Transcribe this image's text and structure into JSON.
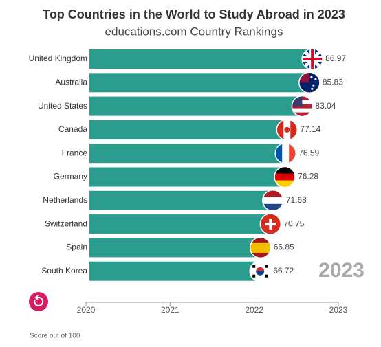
{
  "chart_data": {
    "type": "bar",
    "orientation": "horizontal",
    "title": "Top Countries in the World to Study Abroad in 2023",
    "subtitle": "educations.com Country Rankings",
    "categories": [
      "United Kingdom",
      "Australia",
      "United States",
      "Canada",
      "France",
      "Germany",
      "Netherlands",
      "Switzerland",
      "Spain",
      "South Korea"
    ],
    "values": [
      86.97,
      85.83,
      83.04,
      77.14,
      76.59,
      76.28,
      71.68,
      70.75,
      66.85,
      66.72
    ],
    "color": "#2a9d8f",
    "xlim": [
      0,
      100
    ],
    "year": 2023,
    "timeline": {
      "ticks": [
        2020,
        2021,
        2022,
        2023
      ],
      "lim": [
        2020,
        2023
      ]
    },
    "note": "Score out of 100"
  }
}
